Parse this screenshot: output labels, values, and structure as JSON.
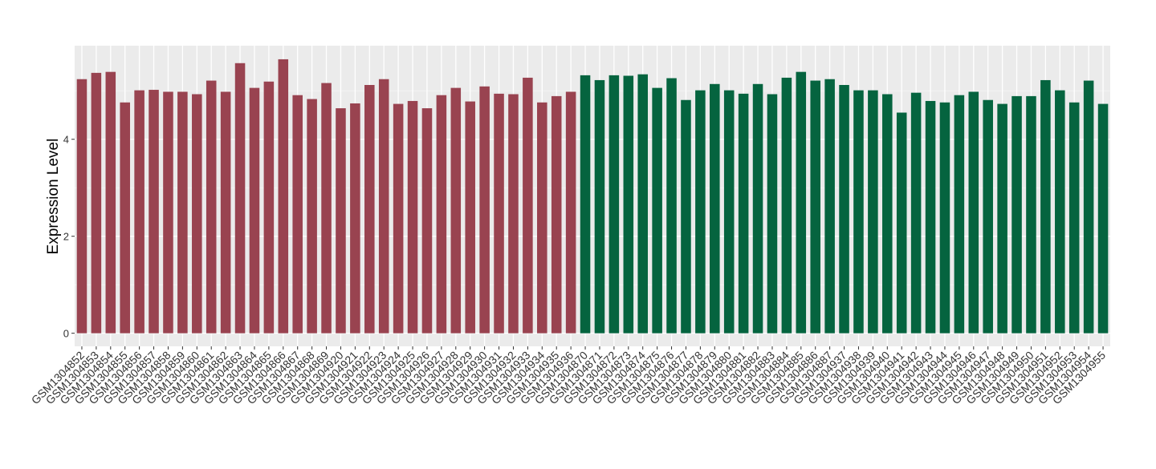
{
  "chart_data": {
    "type": "bar",
    "y_label": "Expression Level",
    "categories": [
      "GSM1304852",
      "GSM1304853",
      "GSM1304854",
      "GSM1304855",
      "GSM1304856",
      "GSM1304857",
      "GSM1304858",
      "GSM1304859",
      "GSM1304860",
      "GSM1304861",
      "GSM1304862",
      "GSM1304863",
      "GSM1304864",
      "GSM1304865",
      "GSM1304866",
      "GSM1304867",
      "GSM1304868",
      "GSM1304869",
      "GSM1304920",
      "GSM1304921",
      "GSM1304922",
      "GSM1304923",
      "GSM1304924",
      "GSM1304925",
      "GSM1304926",
      "GSM1304927",
      "GSM1304928",
      "GSM1304929",
      "GSM1304930",
      "GSM1304931",
      "GSM1304932",
      "GSM1304933",
      "GSM1304934",
      "GSM1304935",
      "GSM1304936",
      "GSM1304870",
      "GSM1304871",
      "GSM1304872",
      "GSM1304873",
      "GSM1304874",
      "GSM1304875",
      "GSM1304876",
      "GSM1304877",
      "GSM1304878",
      "GSM1304879",
      "GSM1304880",
      "GSM1304881",
      "GSM1304882",
      "GSM1304883",
      "GSM1304884",
      "GSM1304885",
      "GSM1304886",
      "GSM1304887",
      "GSM1304937",
      "GSM1304938",
      "GSM1304939",
      "GSM1304940",
      "GSM1304941",
      "GSM1304942",
      "GSM1304943",
      "GSM1304944",
      "GSM1304945",
      "GSM1304946",
      "GSM1304947",
      "GSM1304948",
      "GSM1304949",
      "GSM1304950",
      "GSM1304951",
      "GSM1304952",
      "GSM1304953",
      "GSM1304954",
      "GSM1304955"
    ],
    "values": [
      5.24,
      5.37,
      5.39,
      4.76,
      5.01,
      5.02,
      4.98,
      4.98,
      4.93,
      5.21,
      4.98,
      5.57,
      5.06,
      5.19,
      5.65,
      4.91,
      4.83,
      5.16,
      4.64,
      4.74,
      5.12,
      5.24,
      4.73,
      4.79,
      4.64,
      4.91,
      5.06,
      4.78,
      5.09,
      4.94,
      4.93,
      5.27,
      4.76,
      4.89,
      4.98,
      5.32,
      5.22,
      5.32,
      5.31,
      5.34,
      5.06,
      5.26,
      4.81,
      5.01,
      5.14,
      5.01,
      4.94,
      5.14,
      4.93,
      5.27,
      5.39,
      5.21,
      5.24,
      5.12,
      5.01,
      5.01,
      4.93,
      4.55,
      4.96,
      4.79,
      4.76,
      4.91,
      4.98,
      4.81,
      4.73,
      4.89,
      4.89,
      5.22,
      5.01,
      4.76,
      5.21,
      4.73
    ],
    "colors": [
      "#994350",
      "#994350",
      "#994350",
      "#994350",
      "#994350",
      "#994350",
      "#994350",
      "#994350",
      "#994350",
      "#994350",
      "#994350",
      "#994350",
      "#994350",
      "#994350",
      "#994350",
      "#994350",
      "#994350",
      "#994350",
      "#994350",
      "#994350",
      "#994350",
      "#994350",
      "#994350",
      "#994350",
      "#994350",
      "#994350",
      "#994350",
      "#994350",
      "#994350",
      "#994350",
      "#994350",
      "#994350",
      "#994350",
      "#994350",
      "#994350",
      "#05643f",
      "#05643f",
      "#05643f",
      "#05643f",
      "#05643f",
      "#05643f",
      "#05643f",
      "#05643f",
      "#05643f",
      "#05643f",
      "#05643f",
      "#05643f",
      "#05643f",
      "#05643f",
      "#05643f",
      "#05643f",
      "#05643f",
      "#05643f",
      "#05643f",
      "#05643f",
      "#05643f",
      "#05643f",
      "#05643f",
      "#05643f",
      "#05643f",
      "#05643f",
      "#05643f",
      "#05643f",
      "#05643f",
      "#05643f",
      "#05643f",
      "#05643f",
      "#05643f",
      "#05643f",
      "#05643f",
      "#05643f",
      "#05643f"
    ],
    "ylim": [
      -0.27,
      5.93
    ],
    "yticks": [
      0,
      2,
      4
    ],
    "grid": true
  }
}
